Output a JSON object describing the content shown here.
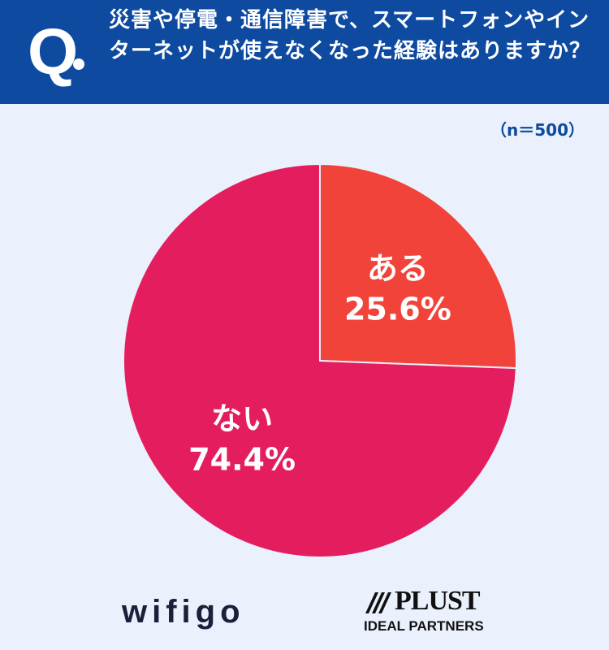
{
  "header": {
    "q_label": "Q",
    "question": "災害や停電・通信障害で、スマートフォンやインターネットが使えなくなった経験はありますか？"
  },
  "sample_size": "（n＝500）",
  "chart_data": {
    "type": "pie",
    "slices": [
      {
        "label": "ある",
        "value": 25.6,
        "value_label": "25.6%",
        "color": "#f2433a"
      },
      {
        "label": "ない",
        "value": 74.4,
        "value_label": "74.4%",
        "color": "#e41e5e"
      }
    ],
    "start": "12 o'clock",
    "direction": "clockwise"
  },
  "logos": {
    "wifigo": "wifigo",
    "plust": "PLUST",
    "plust_sub": "IDEAL PARTNERS"
  }
}
